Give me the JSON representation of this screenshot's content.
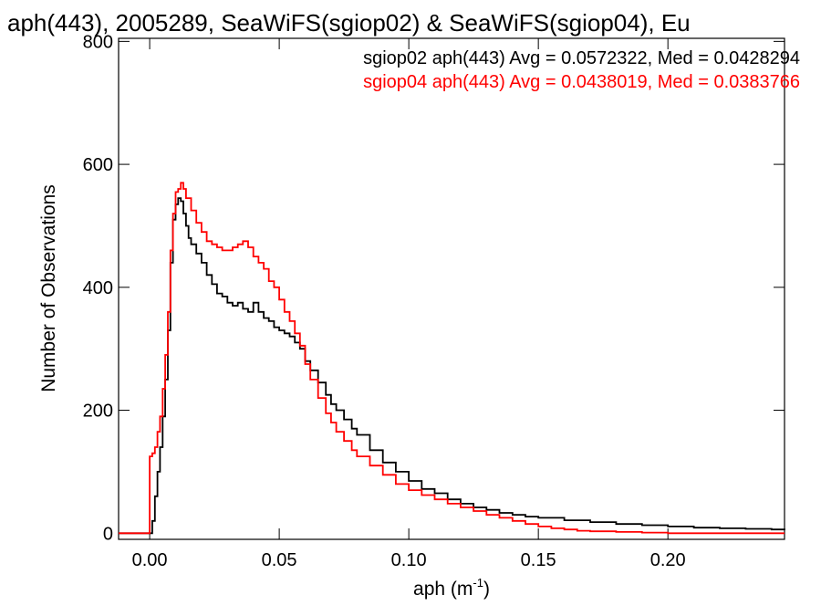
{
  "chart_data": {
    "type": "line",
    "title": "aph(443), 2005289, SeaWiFS(sgiop02) & SeaWiFS(sgiop04), Eu",
    "xlabel_base": "aph (m",
    "xlabel_sup": "-1",
    "xlabel_tail": ")",
    "ylabel": "Number of Observations",
    "xlim": [
      -0.012,
      0.245
    ],
    "ylim": [
      -10,
      805
    ],
    "xticks": [
      0.0,
      0.05,
      0.1,
      0.15,
      0.2
    ],
    "xtick_labels": [
      "0.00",
      "0.05",
      "0.10",
      "0.15",
      "0.20"
    ],
    "yticks": [
      0,
      200,
      400,
      600,
      800
    ],
    "ytick_labels": [
      "0",
      "200",
      "400",
      "600",
      "800"
    ],
    "grid": false,
    "legend_position": "top-right",
    "series": [
      {
        "name": "sgiop02",
        "legend": "sgiop02 aph(443) Avg = 0.0572322, Med = 0.0428294",
        "color": "#000000",
        "x": [
          -0.012,
          0.0,
          0.001,
          0.002,
          0.003,
          0.004,
          0.005,
          0.006,
          0.007,
          0.008,
          0.009,
          0.01,
          0.011,
          0.012,
          0.013,
          0.014,
          0.015,
          0.016,
          0.018,
          0.02,
          0.022,
          0.024,
          0.026,
          0.028,
          0.03,
          0.032,
          0.034,
          0.036,
          0.038,
          0.04,
          0.042,
          0.044,
          0.046,
          0.048,
          0.05,
          0.052,
          0.054,
          0.056,
          0.058,
          0.06,
          0.062,
          0.065,
          0.068,
          0.07,
          0.072,
          0.075,
          0.078,
          0.08,
          0.085,
          0.09,
          0.095,
          0.1,
          0.105,
          0.11,
          0.115,
          0.12,
          0.125,
          0.13,
          0.135,
          0.14,
          0.145,
          0.15,
          0.16,
          0.17,
          0.18,
          0.19,
          0.2,
          0.21,
          0.22,
          0.23,
          0.24,
          0.245
        ],
        "y": [
          0,
          0,
          20,
          60,
          100,
          140,
          190,
          250,
          330,
          440,
          510,
          535,
          545,
          540,
          520,
          500,
          480,
          470,
          455,
          440,
          420,
          405,
          390,
          385,
          375,
          370,
          375,
          365,
          360,
          375,
          360,
          350,
          345,
          335,
          330,
          325,
          320,
          310,
          300,
          280,
          265,
          245,
          225,
          210,
          200,
          185,
          170,
          160,
          135,
          115,
          100,
          85,
          72,
          65,
          55,
          48,
          42,
          38,
          33,
          30,
          27,
          25,
          21,
          18,
          15,
          13,
          11,
          9,
          8,
          7,
          6,
          5
        ]
      },
      {
        "name": "sgiop04",
        "legend": "sgiop04 aph(443) Avg = 0.0438019, Med = 0.0383766",
        "color": "#ff0000",
        "x": [
          -0.012,
          -0.001,
          0.0,
          0.001,
          0.002,
          0.003,
          0.004,
          0.005,
          0.006,
          0.007,
          0.008,
          0.009,
          0.01,
          0.011,
          0.012,
          0.013,
          0.014,
          0.016,
          0.018,
          0.02,
          0.022,
          0.024,
          0.026,
          0.028,
          0.03,
          0.032,
          0.034,
          0.036,
          0.038,
          0.04,
          0.042,
          0.044,
          0.046,
          0.048,
          0.05,
          0.052,
          0.054,
          0.056,
          0.058,
          0.06,
          0.062,
          0.065,
          0.068,
          0.07,
          0.072,
          0.075,
          0.078,
          0.08,
          0.085,
          0.09,
          0.095,
          0.1,
          0.105,
          0.11,
          0.115,
          0.12,
          0.125,
          0.13,
          0.135,
          0.14,
          0.145,
          0.15,
          0.155,
          0.16,
          0.165,
          0.17,
          0.18,
          0.19,
          0.2,
          0.245
        ],
        "y": [
          0,
          0,
          125,
          130,
          140,
          165,
          190,
          235,
          290,
          360,
          460,
          520,
          555,
          560,
          570,
          560,
          545,
          525,
          505,
          490,
          475,
          470,
          465,
          460,
          460,
          465,
          470,
          475,
          465,
          450,
          440,
          430,
          410,
          400,
          380,
          360,
          345,
          325,
          305,
          275,
          250,
          220,
          195,
          180,
          165,
          150,
          135,
          125,
          110,
          95,
          80,
          70,
          62,
          55,
          48,
          42,
          36,
          30,
          25,
          20,
          15,
          11,
          8,
          6,
          4,
          3,
          2,
          1,
          0,
          0
        ]
      }
    ]
  }
}
